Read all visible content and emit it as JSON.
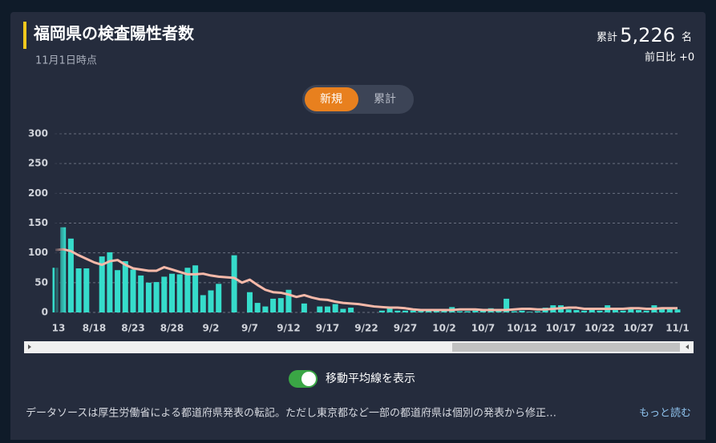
{
  "header": {
    "title": "福岡県の検査陽性者数",
    "subtitle": "11月1日時点",
    "total_label": "累計",
    "total_value": "5,226",
    "total_unit": "名",
    "diff_label": "前日比",
    "diff_value": "+0"
  },
  "toggle": {
    "options": [
      "新規",
      "累計"
    ]
  },
  "switch_label": "移動平均線を表示",
  "footer": {
    "text": "データソースは厚生労働省による都道府県発表の転記。ただし東京都など一部の都道府県は個別の発表から修正…",
    "link": "もっと読む"
  },
  "chart_data": {
    "type": "bar",
    "categories": [
      "13",
      null,
      null,
      null,
      null,
      "8/18",
      null,
      null,
      null,
      null,
      "8/23",
      null,
      null,
      null,
      null,
      "8/28",
      null,
      null,
      null,
      null,
      "9/2",
      null,
      null,
      null,
      null,
      "9/7",
      null,
      null,
      null,
      null,
      "9/12",
      null,
      null,
      null,
      null,
      "9/17",
      null,
      null,
      null,
      null,
      "9/22",
      null,
      null,
      null,
      null,
      "9/27",
      null,
      null,
      null,
      null,
      "10/2",
      null,
      null,
      null,
      null,
      "10/7",
      null,
      null,
      null,
      null,
      "10/12",
      null,
      null,
      null,
      null,
      "10/17",
      null,
      null,
      null,
      null,
      "10/22",
      null,
      null,
      null,
      null,
      "10/27",
      null,
      null,
      null,
      null,
      "11/1"
    ],
    "values": [
      75,
      143,
      124,
      74,
      74,
      0,
      94,
      101,
      71,
      86,
      72,
      62,
      50,
      51,
      60,
      65,
      64,
      75,
      79,
      29,
      37,
      48,
      0,
      96,
      0,
      34,
      16,
      10,
      23,
      24,
      38,
      0,
      15,
      0,
      10,
      10,
      14,
      6,
      8,
      0,
      0,
      0,
      3,
      8,
      3,
      3,
      3,
      2,
      4,
      5,
      5,
      9,
      2,
      2,
      3,
      3,
      7,
      2,
      23,
      2,
      3,
      1,
      2,
      8,
      12,
      12,
      5,
      4,
      3,
      5,
      3,
      12,
      4,
      3,
      7,
      4,
      3,
      12,
      8,
      8,
      5
    ],
    "color": "#36dccb",
    "moving_average": {
      "color": "#f7b9a9",
      "values": [
        105,
        106,
        103,
        96,
        90,
        84,
        80,
        86,
        88,
        80,
        74,
        72,
        70,
        70,
        76,
        72,
        68,
        64,
        64,
        65,
        62,
        60,
        59,
        58,
        50,
        55,
        46,
        38,
        34,
        33,
        30,
        26,
        29,
        25,
        22,
        21,
        18,
        16,
        15,
        14,
        12,
        10,
        9,
        8,
        8,
        7,
        5,
        4,
        4,
        4,
        4,
        4,
        5,
        5,
        5,
        4,
        4,
        4,
        4,
        5,
        6,
        6,
        5,
        5,
        6,
        7,
        8,
        8,
        6,
        6,
        6,
        6,
        6,
        6,
        7,
        7,
        6,
        6,
        7,
        7,
        7
      ]
    },
    "ylim": [
      0,
      300
    ],
    "yticks": [
      0,
      50,
      100,
      150,
      200,
      250,
      300
    ],
    "grid": true
  }
}
